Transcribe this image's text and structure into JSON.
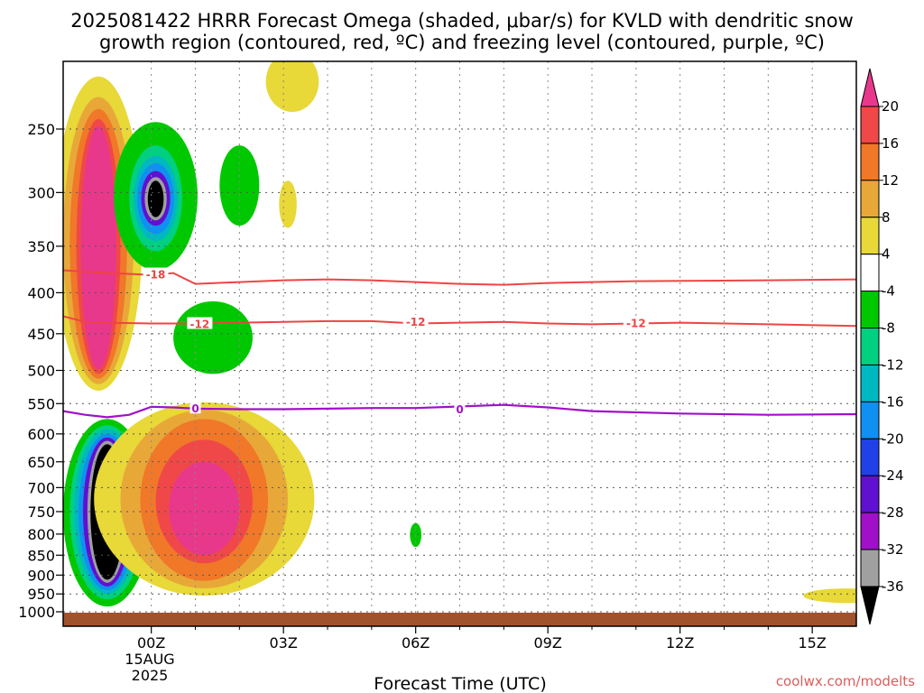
{
  "chart_data": {
    "type": "heatmap",
    "title_lines": [
      "2025081422 HRRR Forecast Omega (shaded, μbar/s) for KVLD with dendritic snow",
      "growth region (contoured, red, ºC) and freezing level (contoured, purple, ºC)"
    ],
    "xlabel": "Forecast Time (UTC)",
    "x_ticks": [
      {
        "label": "00Z",
        "hour": 0
      },
      {
        "label": "03Z",
        "hour": 3
      },
      {
        "label": "06Z",
        "hour": 6
      },
      {
        "label": "09Z",
        "hour": 9
      },
      {
        "label": "12Z",
        "hour": 12
      },
      {
        "label": "15Z",
        "hour": 15
      }
    ],
    "x_range": [
      -2,
      16
    ],
    "date_label": [
      "15AUG",
      "2025"
    ],
    "y_scale": "log",
    "y_ticks": [
      250,
      300,
      350,
      400,
      450,
      500,
      550,
      600,
      650,
      700,
      750,
      800,
      850,
      900,
      950,
      1000
    ],
    "y_range": [
      200,
      1010
    ],
    "colorbar": {
      "labels": [
        "20",
        "16",
        "12",
        "8",
        "4",
        "-4",
        "-8",
        "-12",
        "-16",
        "-20",
        "-24",
        "-28",
        "-32",
        "-36"
      ],
      "colors": [
        "#e8388c",
        "#f04848",
        "#f07828",
        "#e8a838",
        "#e8d838",
        "#ffffff",
        "#00c800",
        "#00d080",
        "#00b8c0",
        "#1090f0",
        "#2040e8",
        "#6010d0",
        "#a010c8",
        "#a0a0a0",
        "#000000"
      ]
    },
    "contours": {
      "dgz_red": [
        {
          "label": "-18",
          "level": -18,
          "pressures": [
            375,
            378,
            380,
            378,
            390,
            388,
            386,
            385,
            386,
            388,
            390,
            391,
            389,
            387,
            386,
            385
          ],
          "hours": [
            -2,
            -1,
            0,
            0.5,
            1,
            2,
            3,
            4,
            5,
            6,
            7,
            8,
            9,
            11,
            14,
            16
          ]
        },
        {
          "label": "-12",
          "level": -12,
          "pressures": [
            428,
            435,
            436,
            437,
            437,
            436,
            435,
            434,
            434,
            437,
            436,
            435,
            437,
            438,
            436,
            438,
            440
          ],
          "hours": [
            -2,
            -1.5,
            -1,
            0,
            1,
            2,
            3,
            4,
            5,
            6,
            7,
            8,
            9,
            10,
            12,
            14,
            16
          ]
        }
      ],
      "freezing_purple": {
        "label": "0",
        "level": 0,
        "pressures": [
          562,
          568,
          572,
          568,
          555,
          556,
          558,
          559,
          559,
          558,
          557,
          557,
          552,
          556,
          562,
          566,
          568,
          567
        ],
        "hours": [
          -2,
          -1.5,
          -1,
          -0.5,
          0,
          0.5,
          1,
          2,
          3,
          4,
          5,
          6,
          8,
          9,
          10,
          12,
          14,
          16
        ]
      },
      "label_positions": [
        {
          "label": "-18",
          "hour": 0.1,
          "p": 379,
          "color": "#ee4444"
        },
        {
          "label": "-12",
          "hour": 1.1,
          "p": 437,
          "color": "#ee4444"
        },
        {
          "label": "-12",
          "hour": 6.0,
          "p": 434,
          "color": "#ee4444"
        },
        {
          "label": "-12",
          "hour": 11.0,
          "p": 436,
          "color": "#ee4444"
        },
        {
          "label": "0",
          "hour": 1.0,
          "p": 557,
          "color": "#a010c8"
        },
        {
          "label": "0",
          "hour": 7.0,
          "p": 558,
          "color": "#a010c8"
        }
      ]
    },
    "omega_features": [
      {
        "desc": "upward motion core upper",
        "hour_center": -1.2,
        "p_center": 360,
        "peak": "20",
        "bands": [
          {
            "color": "#e8d838",
            "hw": 1.0,
            "p_top": 215,
            "p_bot": 530
          },
          {
            "color": "#e8a838",
            "hw": 0.8,
            "p_top": 228,
            "p_bot": 520
          },
          {
            "color": "#f07828",
            "hw": 0.65,
            "p_top": 236,
            "p_bot": 512
          },
          {
            "color": "#f04848",
            "hw": 0.5,
            "p_top": 243,
            "p_bot": 505
          },
          {
            "color": "#e8388c",
            "hw": 0.4,
            "p_top": 248,
            "p_bot": 498
          }
        ]
      },
      {
        "desc": "downward motion core upper",
        "hour_center": 0.1,
        "p_center": 305,
        "peak": "-36",
        "bands": [
          {
            "color": "#00c800",
            "hw": 0.95,
            "p_top": 245,
            "p_bot": 375
          },
          {
            "color": "#00d080",
            "hw": 0.6,
            "p_top": 262,
            "p_bot": 355
          },
          {
            "color": "#00b8c0",
            "hw": 0.5,
            "p_top": 270,
            "p_bot": 345
          },
          {
            "color": "#1090f0",
            "hw": 0.42,
            "p_top": 276,
            "p_bot": 338
          },
          {
            "color": "#6010d0",
            "hw": 0.33,
            "p_top": 282,
            "p_bot": 330
          },
          {
            "color": "#a0a0a0",
            "hw": 0.25,
            "p_top": 287,
            "p_bot": 325
          },
          {
            "color": "#000000",
            "hw": 0.18,
            "p_top": 290,
            "p_bot": 322
          }
        ]
      },
      {
        "desc": "downward motion core lower",
        "hour_center": -1.0,
        "p_center": 730,
        "peak": "-36",
        "bands": [
          {
            "color": "#00c800",
            "hw": 1.0,
            "p_top": 575,
            "p_bot": 985
          },
          {
            "color": "#00d080",
            "hw": 0.85,
            "p_top": 585,
            "p_bot": 965
          },
          {
            "color": "#00b8c0",
            "hw": 0.75,
            "p_top": 592,
            "p_bot": 950
          },
          {
            "color": "#1090f0",
            "hw": 0.65,
            "p_top": 600,
            "p_bot": 940
          },
          {
            "color": "#6010d0",
            "hw": 0.55,
            "p_top": 606,
            "p_bot": 930
          },
          {
            "color": "#a0a0a0",
            "hw": 0.45,
            "p_top": 612,
            "p_bot": 920
          },
          {
            "color": "#000000",
            "hw": 0.38,
            "p_top": 618,
            "p_bot": 912
          }
        ]
      },
      {
        "desc": "upward motion core lower",
        "hour_center": 1.2,
        "p_center": 740,
        "peak": "20",
        "bands": [
          {
            "color": "#e8d838",
            "hw": 2.5,
            "p_top": 548,
            "p_bot": 955
          },
          {
            "color": "#e8a838",
            "hw": 1.9,
            "p_top": 560,
            "p_bot": 935
          },
          {
            "color": "#f07828",
            "hw": 1.45,
            "p_top": 575,
            "p_bot": 915
          },
          {
            "color": "#f04848",
            "hw": 1.1,
            "p_top": 610,
            "p_bot": 870
          },
          {
            "color": "#e8388c",
            "hw": 0.8,
            "p_top": 650,
            "p_bot": 850
          }
        ]
      }
    ]
  },
  "credit": "coolwx.com/modelts"
}
